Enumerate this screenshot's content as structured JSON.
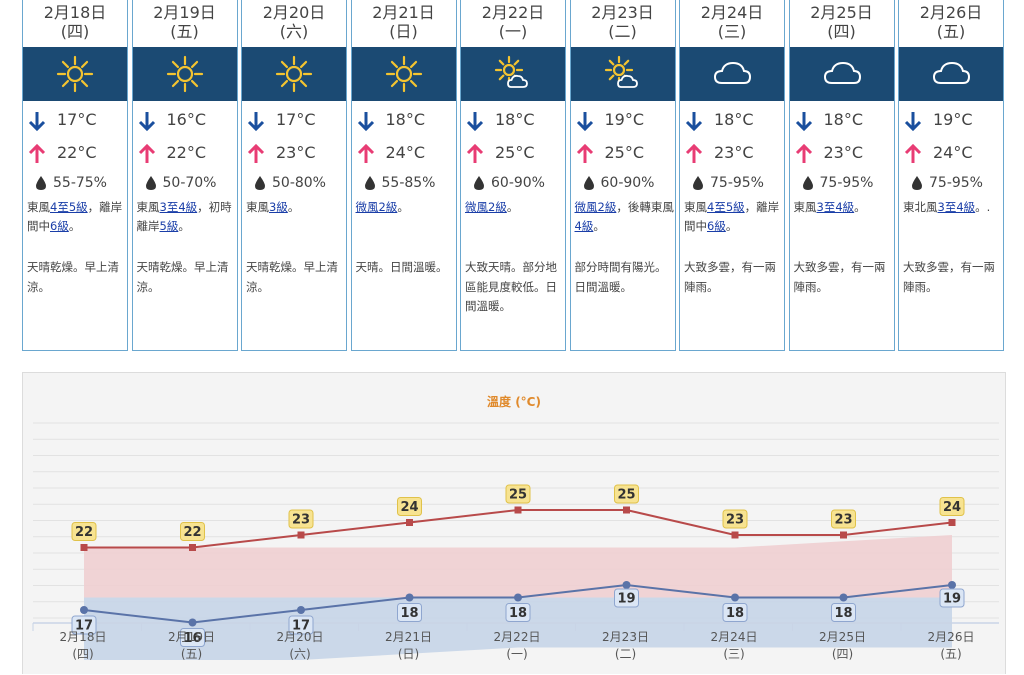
{
  "forecast": [
    {
      "date": "2月18日",
      "weekday": "(四)",
      "icon": "sunny-icon",
      "min": "17°C",
      "max": "22°C",
      "humidity": "55-75%",
      "wind": [
        {
          "t": "東風"
        },
        {
          "t": "4至5級",
          "link": true
        },
        {
          "t": "，離岸間中"
        },
        {
          "t": "6級",
          "link": true
        },
        {
          "t": "。"
        }
      ],
      "desc": "天晴乾燥。早上清涼。"
    },
    {
      "date": "2月19日",
      "weekday": "(五)",
      "icon": "sunny-icon",
      "min": "16°C",
      "max": "22°C",
      "humidity": "50-70%",
      "wind": [
        {
          "t": "東風"
        },
        {
          "t": "3至4級",
          "link": true
        },
        {
          "t": "，初時離岸"
        },
        {
          "t": "5級",
          "link": true
        },
        {
          "t": "。"
        }
      ],
      "desc": "天晴乾燥。早上清涼。"
    },
    {
      "date": "2月20日",
      "weekday": "(六)",
      "icon": "sunny-icon",
      "min": "17°C",
      "max": "23°C",
      "humidity": "50-80%",
      "wind": [
        {
          "t": "東風"
        },
        {
          "t": "3級",
          "link": true
        },
        {
          "t": "。"
        }
      ],
      "desc": "天晴乾燥。早上清涼。"
    },
    {
      "date": "2月21日",
      "weekday": "(日)",
      "icon": "sunny-icon",
      "min": "18°C",
      "max": "24°C",
      "humidity": "55-85%",
      "wind": [
        {
          "t": "微風2級",
          "link": true
        },
        {
          "t": "。"
        }
      ],
      "desc": "天晴。日間溫暖。"
    },
    {
      "date": "2月22日",
      "weekday": "(一)",
      "icon": "sunny-periods-icon",
      "min": "18°C",
      "max": "25°C",
      "humidity": "60-90%",
      "wind": [
        {
          "t": "微風2級",
          "link": true
        },
        {
          "t": "。"
        }
      ],
      "desc": "大致天晴。部分地區能見度較低。日間溫暖。"
    },
    {
      "date": "2月23日",
      "weekday": "(二)",
      "icon": "sunny-periods-icon",
      "min": "19°C",
      "max": "25°C",
      "humidity": "60-90%",
      "wind": [
        {
          "t": "微風2級",
          "link": true
        },
        {
          "t": "，後轉東風"
        },
        {
          "t": "4級",
          "link": true
        },
        {
          "t": "。"
        }
      ],
      "desc": "部分時間有陽光。日間溫暖。"
    },
    {
      "date": "2月24日",
      "weekday": "(三)",
      "icon": "cloudy-icon",
      "min": "18°C",
      "max": "23°C",
      "humidity": "75-95%",
      "wind": [
        {
          "t": "東風"
        },
        {
          "t": "4至5級",
          "link": true
        },
        {
          "t": "，離岸間中"
        },
        {
          "t": "6級",
          "link": true
        },
        {
          "t": "。"
        }
      ],
      "desc": "大致多雲，有一兩陣雨。"
    },
    {
      "date": "2月25日",
      "weekday": "(四)",
      "icon": "cloudy-icon",
      "min": "18°C",
      "max": "23°C",
      "humidity": "75-95%",
      "wind": [
        {
          "t": "東風"
        },
        {
          "t": "3至4級",
          "link": true
        },
        {
          "t": "。"
        }
      ],
      "desc": "大致多雲，有一兩陣雨。"
    },
    {
      "date": "2月26日",
      "weekday": "(五)",
      "icon": "cloudy-icon",
      "min": "19°C",
      "max": "24°C",
      "humidity": "75-95%",
      "wind": [
        {
          "t": "東北風"
        },
        {
          "t": "3至4級",
          "link": true
        },
        {
          "t": "。."
        }
      ],
      "desc": "大致多雲，有一兩陣雨。"
    }
  ],
  "colors": {
    "header_bg": "#1b4a73",
    "min_arrow": "#1a4f9e",
    "max_arrow": "#e83c74",
    "max_line": "#b84a4a",
    "min_line": "#5a73a8",
    "max_band": "#f0cfd2",
    "min_band": "#c6d5e8",
    "max_label_bg": "#f7e391",
    "min_label_bg": "#dbe6f5"
  },
  "chart_data": {
    "type": "line",
    "title": "溫度 (°C)",
    "categories": [
      [
        "2月18日",
        "(四)"
      ],
      [
        "2月19日",
        "(五)"
      ],
      [
        "2月20日",
        "(六)"
      ],
      [
        "2月21日",
        "(日)"
      ],
      [
        "2月22日",
        "(一)"
      ],
      [
        "2月23日",
        "(二)"
      ],
      [
        "2月24日",
        "(三)"
      ],
      [
        "2月25日",
        "(四)"
      ],
      [
        "2月26日",
        "(五)"
      ]
    ],
    "series": [
      {
        "values": [
          22,
          22,
          23,
          24,
          25,
          25,
          23,
          23,
          24
        ]
      },
      {
        "values": [
          17,
          16,
          17,
          18,
          18,
          19,
          18,
          18,
          19
        ]
      }
    ],
    "max_band_upper": [
      22,
      22,
      22,
      22,
      22,
      22,
      22,
      22.5,
      23
    ],
    "min_band_upper": [
      18,
      18,
      18,
      18,
      18,
      18,
      18,
      18,
      18
    ],
    "min_band_lower": [
      13,
      13,
      13,
      13.5,
      14,
      14,
      14,
      14,
      14
    ],
    "ylim": [
      11,
      27
    ],
    "grid": true
  }
}
